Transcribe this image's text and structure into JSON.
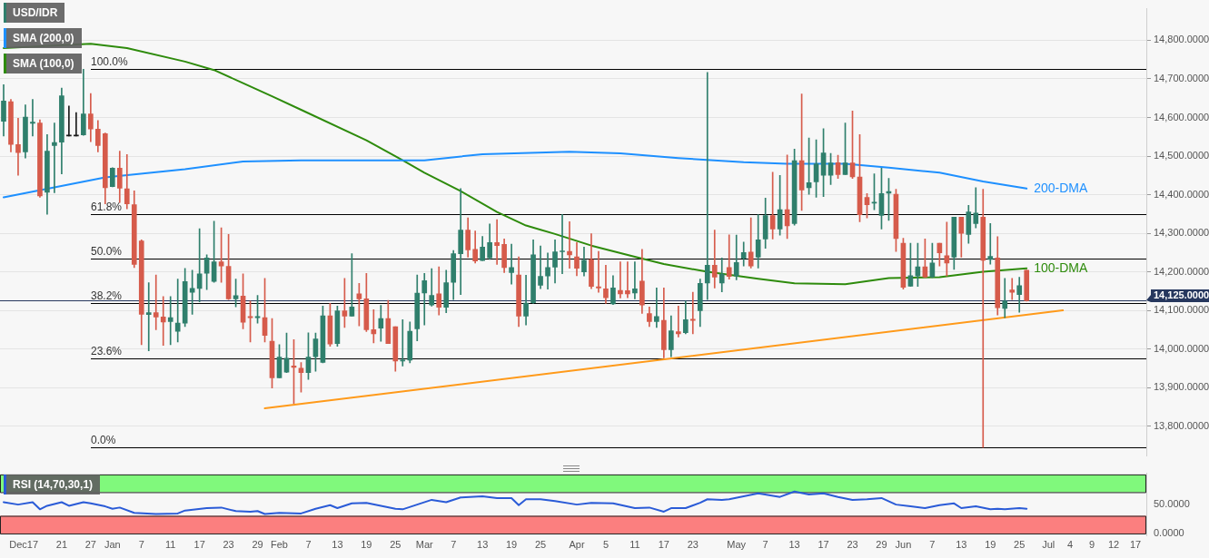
{
  "chart_data": [
    {
      "type": "candlestick",
      "categories": [
        null,
        null,
        null,
        null,
        null,
        null,
        null,
        null,
        null,
        null,
        null,
        null,
        null,
        null,
        null,
        null,
        null,
        null,
        null,
        null,
        null,
        null,
        null,
        null,
        null,
        null,
        null,
        null,
        null,
        null,
        null,
        null,
        null,
        null,
        null,
        null,
        null,
        null,
        null,
        null,
        null,
        null,
        null,
        null,
        null,
        null,
        null,
        null,
        null,
        null,
        null,
        null,
        null,
        null,
        null,
        null,
        null,
        null,
        null,
        null,
        null,
        null,
        null,
        null,
        null,
        null,
        null,
        null,
        null,
        null,
        null,
        null,
        null,
        null,
        null,
        null,
        null,
        null,
        null,
        null,
        null,
        null,
        null,
        null,
        null,
        null,
        null,
        null,
        null,
        null,
        null,
        null,
        null,
        null,
        null,
        null,
        null,
        null,
        null,
        null,
        null,
        null,
        null,
        null,
        null,
        null,
        null,
        null,
        null,
        null,
        null,
        null,
        null,
        null,
        null,
        null,
        null,
        null,
        null,
        null,
        null,
        null,
        null,
        null,
        null,
        null,
        null,
        null,
        null,
        null,
        null,
        null,
        null,
        null,
        null,
        null,
        null,
        null,
        null,
        null,
        null,
        null,
        null,
        null,
        null,
        null,
        null,
        null,
        null,
        null,
        null,
        null,
        null,
        null,
        null,
        null,
        null,
        null
      ],
      "ylim": [
        13723,
        14882
      ],
      "yticks": [
        {
          "value": 13800,
          "label": "13,800.0000"
        },
        {
          "value": 13900,
          "label": "13,900.0000"
        },
        {
          "value": 14000,
          "label": "14,000.0000"
        },
        {
          "value": 14100,
          "label": "14,100.0000"
        },
        {
          "value": 14200,
          "label": "14,200.0000"
        },
        {
          "value": 14300,
          "label": "14,300.0000"
        },
        {
          "value": 14400,
          "label": "14,400.0000"
        },
        {
          "value": 14500,
          "label": "14,500.0000"
        },
        {
          "value": 14600,
          "label": "14,600.0000"
        },
        {
          "value": 14700,
          "label": "14,700.0000"
        },
        {
          "value": 14800,
          "label": "14,800.0000"
        }
      ],
      "y2lim": [
        -2.24,
        116.02
      ],
      "tick_labels": "y",
      "grid": "y",
      "legend": "top left",
      "marker": "none",
      "series": [
        {
          "name": "USD/IDR",
          "color": "#2f7f6c",
          "ohlc": [
            [
              14590,
              14685,
              14552,
              14643
            ],
            [
              14641,
              14647,
              14511,
              14530
            ],
            [
              14530,
              14598,
              14450,
              14509
            ],
            [
              14511,
              14633,
              14495,
              14601
            ],
            [
              14585,
              14647,
              14552,
              14588
            ],
            [
              14586,
              14594,
              14393,
              14397
            ],
            [
              14406,
              14556,
              14349,
              14513
            ],
            [
              14527,
              14586,
              14405,
              14535
            ],
            [
              14536,
              14676,
              14454,
              14656
            ],
            [
              14552,
              14630,
              14552,
              14552
            ],
            [
              14552,
              14613,
              14552,
              14552
            ],
            [
              14555,
              14725,
              14554,
              14609
            ],
            [
              14609,
              14662,
              14537,
              14570
            ],
            [
              14570,
              14592,
              14511,
              14527
            ],
            [
              14558,
              14560,
              14376,
              14418
            ],
            [
              14421,
              14470,
              14420,
              14469
            ],
            [
              14469,
              14513,
              14380,
              14417
            ],
            [
              14415,
              14504,
              14363,
              14376
            ],
            [
              14374,
              14410,
              14211,
              14219
            ],
            [
              14280,
              14283,
              14011,
              14090
            ],
            [
              14089,
              14172,
              13995,
              14094
            ],
            [
              14094,
              14192,
              14050,
              14083
            ],
            [
              14083,
              14136,
              14009,
              14070
            ],
            [
              14071,
              14136,
              14011,
              14081
            ],
            [
              14046,
              14181,
              14018,
              14067
            ],
            [
              14067,
              14209,
              14058,
              14175
            ],
            [
              14147,
              14204,
              14090,
              14157
            ],
            [
              14157,
              14312,
              14122,
              14195
            ],
            [
              14196,
              14244,
              14154,
              14236
            ],
            [
              14175,
              14331,
              14173,
              14226
            ],
            [
              14226,
              14314,
              14173,
              14215
            ],
            [
              14214,
              14297,
              14128,
              14130
            ],
            [
              14130,
              14181,
              14109,
              14138
            ],
            [
              14137,
              14195,
              14052,
              14069
            ],
            [
              14084,
              14124,
              14018,
              14081
            ],
            [
              14081,
              14139,
              14067,
              14084
            ],
            [
              14081,
              14183,
              14018,
              14035
            ],
            [
              14020,
              14079,
              13899,
              13925
            ],
            [
              13925,
              14011,
              13925,
              13979
            ],
            [
              13940,
              14041,
              13939,
              13976
            ],
            [
              13956,
              14024,
              13859,
              13952
            ],
            [
              13950,
              13965,
              13888,
              13939
            ],
            [
              13939,
              14042,
              13921,
              13979
            ],
            [
              13980,
              14041,
              13942,
              14026
            ],
            [
              13965,
              14111,
              13964,
              14086
            ],
            [
              14086,
              14118,
              14007,
              14013
            ],
            [
              14014,
              14111,
              14007,
              14099
            ],
            [
              14099,
              14183,
              14056,
              14085
            ],
            [
              14085,
              14247,
              14085,
              14109
            ],
            [
              14143,
              14170,
              14060,
              14130
            ],
            [
              14130,
              14196,
              14045,
              14050
            ],
            [
              14050,
              14102,
              14016,
              14039
            ],
            [
              14054,
              14113,
              14020,
              14079
            ],
            [
              14079,
              14126,
              14014,
              14014
            ],
            [
              14058,
              14058,
              13942,
              13969
            ],
            [
              13969,
              14076,
              13956,
              13971
            ],
            [
              13971,
              14070,
              13964,
              14046
            ],
            [
              14052,
              14192,
              14021,
              14145
            ],
            [
              14145,
              14196,
              14062,
              14177
            ],
            [
              14114,
              14208,
              14111,
              14139
            ],
            [
              14143,
              14213,
              14088,
              14108
            ],
            [
              14108,
              14204,
              14094,
              14172
            ],
            [
              14173,
              14255,
              14128,
              14247
            ],
            [
              14247,
              14416,
              14141,
              14308
            ],
            [
              14308,
              14340,
              14238,
              14257
            ],
            [
              14258,
              14306,
              14223,
              14228
            ],
            [
              14229,
              14292,
              14229,
              14264
            ],
            [
              14236,
              14324,
              14232,
              14276
            ],
            [
              14276,
              14335,
              14219,
              14268
            ],
            [
              14271,
              14285,
              14198,
              14211
            ],
            [
              14198,
              14272,
              14168,
              14211
            ],
            [
              14192,
              14239,
              14058,
              14085
            ],
            [
              14085,
              14191,
              14062,
              14119
            ],
            [
              14120,
              14283,
              14118,
              14244
            ],
            [
              14165,
              14267,
              14156,
              14188
            ],
            [
              14189,
              14249,
              14155,
              14211
            ],
            [
              14212,
              14283,
              14171,
              14252
            ],
            [
              14252,
              14349,
              14195,
              14254
            ],
            [
              14253,
              14330,
              14209,
              14244
            ],
            [
              14239,
              14276,
              14190,
              14209
            ],
            [
              14200,
              14264,
              14189,
              14230
            ],
            [
              14232,
              14299,
              14156,
              14162
            ],
            [
              14161,
              14253,
              14147,
              14158
            ],
            [
              14156,
              14217,
              14118,
              14133
            ],
            [
              14117,
              14190,
              14115,
              14158
            ],
            [
              14152,
              14226,
              14132,
              14143
            ],
            [
              14151,
              14226,
              14133,
              14143
            ],
            [
              14145,
              14226,
              14130,
              14156
            ],
            [
              14176,
              14258,
              14092,
              14114
            ],
            [
              14092,
              14109,
              14058,
              14071
            ],
            [
              14071,
              14158,
              14056,
              14084
            ],
            [
              14074,
              14158,
              13977,
              13998
            ],
            [
              13998,
              14086,
              13980,
              14047
            ],
            [
              14045,
              14111,
              14031,
              14039
            ],
            [
              14042,
              14124,
              14039,
              14076
            ],
            [
              14077,
              14147,
              14039,
              14074
            ],
            [
              14099,
              14181,
              14058,
              14170
            ],
            [
              14171,
              14717,
              14128,
              14217
            ],
            [
              14217,
              14308,
              14158,
              14186
            ],
            [
              14171,
              14236,
              14148,
              14194
            ],
            [
              14211,
              14296,
              14181,
              14188
            ],
            [
              14189,
              14295,
              14179,
              14224
            ],
            [
              14235,
              14277,
              14215,
              14250
            ],
            [
              14251,
              14340,
              14210,
              14215
            ],
            [
              14238,
              14348,
              14210,
              14283
            ],
            [
              14285,
              14391,
              14261,
              14346
            ],
            [
              14346,
              14458,
              14285,
              14311
            ],
            [
              14311,
              14450,
              14295,
              14361
            ],
            [
              14361,
              14503,
              14286,
              14319
            ],
            [
              14325,
              14518,
              14321,
              14488
            ],
            [
              14488,
              14661,
              14359,
              14412
            ],
            [
              14418,
              14547,
              14401,
              14431
            ],
            [
              14433,
              14542,
              14393,
              14480
            ],
            [
              14450,
              14571,
              14395,
              14508
            ],
            [
              14450,
              14507,
              14426,
              14482
            ],
            [
              14483,
              14502,
              14442,
              14452
            ],
            [
              14452,
              14586,
              14452,
              14482
            ],
            [
              14482,
              14617,
              14442,
              14446
            ],
            [
              14446,
              14556,
              14330,
              14348
            ],
            [
              14393,
              14403,
              14340,
              14374
            ],
            [
              14378,
              14454,
              14361,
              14380
            ],
            [
              14346,
              14469,
              14311,
              14403
            ],
            [
              14404,
              14442,
              14333,
              14408
            ],
            [
              14401,
              14414,
              14253,
              14286
            ],
            [
              14274,
              14287,
              14155,
              14160
            ],
            [
              14163,
              14274,
              14162,
              14190
            ],
            [
              14189,
              14274,
              14162,
              14213
            ],
            [
              14213,
              14285,
              14185,
              14186
            ],
            [
              14187,
              14274,
              14185,
              14223
            ],
            [
              14274,
              14274,
              14215,
              14249
            ],
            [
              14242,
              14329,
              14189,
              14223
            ],
            [
              14238,
              14342,
              14206,
              14342
            ],
            [
              14342,
              14342,
              14238,
              14300
            ],
            [
              14297,
              14372,
              14274,
              14355
            ],
            [
              14325,
              14418,
              14314,
              14352
            ],
            [
              14342,
              14414,
              13745,
              14230
            ],
            [
              14232,
              14325,
              14220,
              14240
            ],
            [
              14236,
              14291,
              14088,
              14107
            ],
            [
              14105,
              14183,
              14081,
              14124
            ],
            [
              14153,
              14183,
              14128,
              14147
            ],
            [
              14141,
              14186,
              14095,
              14164
            ],
            [
              14204,
              14204,
              14124,
              14125
            ],
            null,
            null,
            null,
            null,
            null,
            null,
            null,
            null,
            null,
            null,
            null,
            null,
            null,
            null,
            null,
            null
          ],
          "colors": [
            "#2f7f6c",
            "#d65b4b",
            "#d65b4b",
            "#2f7f6c",
            "#2f7f6c",
            "#d65b4b",
            "#2f7f6c",
            "#2f7f6c",
            "#2f7f6c",
            "#1a1a1a",
            "#1a1a1a",
            "#2f7f6c",
            "#d65b4b",
            "#d65b4b",
            "#d65b4b",
            "#2f7f6c",
            "#d65b4b",
            "#d65b4b",
            "#d65b4b",
            "#d65b4b",
            "#2f7f6c",
            "#d65b4b",
            "#d65b4b",
            "#2f7f6c",
            "#2f7f6c",
            "#2f7f6c",
            "#2f7f6c",
            "#2f7f6c",
            "#2f7f6c",
            "#2f7f6c",
            "#d65b4b",
            "#d65b4b",
            "#2f7f6c",
            "#d65b4b",
            "#d65b4b",
            "#2f7f6c",
            "#d65b4b",
            "#d65b4b",
            "#2f7f6c",
            "#2f7f6c",
            "#d65b4b",
            "#d65b4b",
            "#2f7f6c",
            "#2f7f6c",
            "#2f7f6c",
            "#d65b4b",
            "#2f7f6c",
            "#d65b4b",
            "#2f7f6c",
            "#d65b4b",
            "#d65b4b",
            "#d65b4b",
            "#2f7f6c",
            "#d65b4b",
            "#d65b4b",
            "#2f7f6c",
            "#2f7f6c",
            "#2f7f6c",
            "#2f7f6c",
            "#2f7f6c",
            "#d65b4b",
            "#2f7f6c",
            "#2f7f6c",
            "#2f7f6c",
            "#d65b4b",
            "#d65b4b",
            "#2f7f6c",
            "#2f7f6c",
            "#d65b4b",
            "#d65b4b",
            "#2f7f6c",
            "#d65b4b",
            "#2f7f6c",
            "#2f7f6c",
            "#2f7f6c",
            "#2f7f6c",
            "#2f7f6c",
            "#2f7f6c",
            "#d65b4b",
            "#d65b4b",
            "#2f7f6c",
            "#d65b4b",
            "#d65b4b",
            "#d65b4b",
            "#2f7f6c",
            "#d65b4b",
            "#d65b4b",
            "#2f7f6c",
            "#d65b4b",
            "#d65b4b",
            "#2f7f6c",
            "#d65b4b",
            "#2f7f6c",
            "#d65b4b",
            "#2f7f6c",
            "#d65b4b",
            "#2f7f6c",
            "#2f7f6c",
            "#d65b4b",
            "#2f7f6c",
            "#d65b4b",
            "#2f7f6c",
            "#2f7f6c",
            "#d65b4b",
            "#2f7f6c",
            "#2f7f6c",
            "#d65b4b",
            "#2f7f6c",
            "#d65b4b",
            "#2f7f6c",
            "#d65b4b",
            "#2f7f6c",
            "#2f7f6c",
            "#2f7f6c",
            "#2f7f6c",
            "#d65b4b",
            "#2f7f6c",
            "#d65b4b",
            "#d65b4b",
            "#d65b4b",
            "#2f7f6c",
            "#2f7f6c",
            "#2f7f6c",
            "#d65b4b",
            "#d65b4b",
            "#2f7f6c",
            "#2f7f6c",
            "#d65b4b",
            "#2f7f6c",
            "#d65b4b",
            "#d65b4b",
            "#2f7f6c",
            "#d65b4b",
            "#2f7f6c",
            "#2f7f6c",
            "#d65b4b",
            "#2f7f6c",
            "#d65b4b",
            "#2f7f6c",
            "#d65b4b",
            "#2f7f6c",
            "#d65b4b",
            null,
            null,
            null,
            null,
            null,
            null,
            null,
            null,
            null,
            null,
            null,
            null,
            null,
            null,
            null,
            null
          ]
        },
        {
          "type": "line",
          "name": "SMA (200,0)",
          "color": "#1e90ff",
          "values": [
            14393,
            null,
            null,
            null,
            null,
            null,
            null,
            null,
            null,
            null,
            null,
            null,
            null,
            null,
            14445,
            null,
            null,
            null,
            null,
            null,
            null,
            null,
            null,
            null,
            null,
            14466,
            null,
            null,
            null,
            null,
            null,
            null,
            null,
            14486,
            null,
            null,
            null,
            null,
            null,
            null,
            null,
            14489,
            null,
            null,
            null,
            null,
            null,
            null,
            null,
            null,
            null,
            null,
            null,
            null,
            null,
            14489,
            null,
            null,
            14489,
            null,
            null,
            null,
            null,
            null,
            null,
            null,
            14505,
            null,
            null,
            null,
            null,
            null,
            null,
            null,
            null,
            null,
            null,
            null,
            14511,
            null,
            null,
            null,
            null,
            null,
            null,
            14507,
            null,
            null,
            null,
            null,
            null,
            null,
            null,
            14495,
            null,
            null,
            null,
            null,
            null,
            null,
            null,
            null,
            14484,
            null,
            null,
            null,
            null,
            null,
            14480,
            null,
            null,
            null,
            null,
            null,
            null,
            null,
            14480,
            null,
            null,
            null,
            null,
            null,
            14470,
            null,
            null,
            null,
            null,
            null,
            null,
            14457,
            null,
            null,
            null,
            null,
            null,
            14434,
            null,
            null,
            null,
            null,
            null,
            14416,
            null,
            null,
            null,
            null,
            null,
            null,
            null,
            null,
            null,
            null,
            null,
            null,
            null,
            null,
            null,
            null
          ]
        },
        {
          "type": "line",
          "name": "SMA (100,0)",
          "color": "#2e8b0c",
          "values": [
            14780,
            null,
            null,
            null,
            null,
            null,
            null,
            null,
            null,
            null,
            null,
            null,
            14791,
            null,
            null,
            null,
            null,
            14780,
            null,
            null,
            null,
            null,
            null,
            null,
            null,
            14745,
            null,
            null,
            null,
            14723,
            null,
            null,
            null,
            14689,
            null,
            null,
            null,
            14655,
            null,
            null,
            null,
            14620,
            null,
            null,
            null,
            null,
            null,
            null,
            null,
            null,
            14541,
            null,
            null,
            null,
            null,
            14489,
            null,
            null,
            14457,
            null,
            null,
            null,
            null,
            14409,
            null,
            null,
            null,
            null,
            14355,
            null,
            null,
            null,
            14320,
            null,
            null,
            null,
            14298,
            null,
            null,
            null,
            null,
            14268,
            null,
            null,
            null,
            null,
            null,
            14239,
            null,
            null,
            null,
            14220,
            null,
            null,
            null,
            null,
            null,
            14200,
            null,
            null,
            null,
            null,
            null,
            null,
            14182,
            null,
            null,
            null,
            null,
            14170,
            null,
            null,
            null,
            null,
            null,
            null,
            14168,
            null,
            null,
            null,
            null,
            null,
            14184,
            null,
            null,
            null,
            null,
            null,
            null,
            14186,
            null,
            null,
            null,
            null,
            null,
            14200,
            null,
            null,
            null,
            null,
            null,
            14209,
            null,
            null,
            null,
            null,
            null,
            null,
            null,
            null,
            null,
            null,
            null,
            null,
            null,
            null,
            null,
            null
          ]
        },
        {
          "type": "line",
          "color": "#ff9a1a",
          "values": [
            null,
            null,
            null,
            null,
            null,
            null,
            null,
            null,
            null,
            null,
            null,
            null,
            null,
            null,
            null,
            null,
            null,
            null,
            null,
            null,
            null,
            null,
            null,
            null,
            null,
            null,
            null,
            null,
            null,
            null,
            null,
            null,
            null,
            null,
            null,
            null,
            13846,
            null,
            null,
            null,
            null,
            null,
            null,
            null,
            null,
            null,
            null,
            null,
            null,
            null,
            null,
            null,
            null,
            null,
            null,
            null,
            null,
            null,
            null,
            null,
            null,
            null,
            null,
            null,
            null,
            null,
            null,
            null,
            null,
            null,
            null,
            null,
            null,
            null,
            null,
            null,
            null,
            null,
            null,
            null,
            null,
            null,
            null,
            null,
            null,
            null,
            null,
            null,
            null,
            null,
            null,
            null,
            null,
            null,
            null,
            null,
            null,
            null,
            null,
            null,
            null,
            null,
            null,
            null,
            null,
            null,
            null,
            null,
            null,
            null,
            null,
            null,
            null,
            null,
            null,
            null,
            null,
            null,
            null,
            null,
            null,
            null,
            null,
            null,
            null,
            null,
            null,
            null,
            null,
            null,
            null,
            null,
            null,
            null,
            null,
            null,
            null,
            null,
            null,
            null,
            null,
            null,
            null,
            null,
            null,
            null,
            14100,
            null,
            null,
            null,
            null,
            null,
            null,
            null,
            null,
            null,
            null,
            null
          ]
        }
      ],
      "ref_lines": [
        {
          "axis": "y2",
          "value": 100,
          "label": "100.0%",
          "color": "#000000"
        },
        {
          "axis": "y2",
          "value": 61.8,
          "label": "61.8%",
          "color": "#000000"
        },
        {
          "axis": "y2",
          "value": 50,
          "label": "50.0%",
          "color": "#000000"
        },
        {
          "axis": "y2",
          "value": 38.2,
          "label": "38.2%",
          "color": "#000000"
        },
        {
          "axis": "y2",
          "value": 23.6,
          "label": "23.6%",
          "color": "#000000"
        },
        {
          "axis": "y2",
          "value": 0,
          "label": "0.0%",
          "color": "#000000"
        },
        {
          "axis": "y",
          "value": 14125,
          "label": "14,125.0000",
          "color": "#26375e"
        }
      ],
      "annotations": [
        "200-DMA",
        "100-DMA"
      ]
    },
    {
      "type": "line",
      "categories": [
        null,
        null,
        "Dec",
        null,
        "17",
        null,
        null,
        null,
        "21",
        null,
        null,
        null,
        "27",
        null,
        null,
        "Jan",
        null,
        null,
        null,
        "7",
        null,
        null,
        null,
        "11",
        null,
        null,
        null,
        "17",
        null,
        null,
        null,
        "23",
        null,
        null,
        null,
        "29",
        null,
        null,
        "Feb",
        null,
        null,
        null,
        "7",
        null,
        null,
        null,
        "13",
        null,
        null,
        null,
        "19",
        null,
        null,
        null,
        "25",
        null,
        null,
        null,
        "Mar",
        null,
        null,
        null,
        "7",
        null,
        null,
        null,
        "13",
        null,
        null,
        null,
        "19",
        null,
        null,
        null,
        "25",
        null,
        null,
        null,
        null,
        "Apr",
        null,
        null,
        null,
        "5",
        null,
        null,
        null,
        "11",
        null,
        null,
        null,
        "17",
        null,
        null,
        null,
        "23",
        null,
        null,
        null,
        null,
        null,
        "May",
        null,
        null,
        null,
        "7",
        null,
        null,
        null,
        "13",
        null,
        null,
        null,
        "17",
        null,
        null,
        null,
        "23",
        null,
        null,
        null,
        "29",
        null,
        null,
        "Jun",
        null,
        null,
        null,
        "7",
        null,
        null,
        null,
        "13",
        null,
        null,
        null,
        "19",
        null,
        null,
        null,
        "25",
        null,
        null,
        null,
        "Jul",
        null,
        null,
        "4",
        null,
        null,
        "9",
        null,
        null,
        "12",
        null,
        null,
        "17",
        null
      ],
      "ylim": [
        -3,
        102
      ],
      "yticks": [
        {
          "value": 0,
          "label": "0.0000"
        },
        {
          "value": 50,
          "label": "50.0000"
        }
      ],
      "legend": "top left",
      "marker": "none",
      "series": [
        {
          "name": "RSI (14,70,30,1)",
          "color": "#2a5bd7",
          "values": [
            53,
            null,
            49,
            null,
            53,
            41,
            47,
            null,
            53,
            47,
            null,
            53,
            51,
            null,
            46,
            42,
            44,
            null,
            35,
            null,
            null,
            33,
            null,
            null,
            34,
            39,
            null,
            null,
            43,
            null,
            44,
            null,
            38,
            null,
            37,
            38,
            33,
            null,
            35,
            null,
            null,
            34,
            null,
            42,
            null,
            48,
            43,
            null,
            51,
            null,
            52,
            null,
            47,
            null,
            42,
            41,
            null,
            49,
            null,
            57,
            null,
            53,
            null,
            61,
            null,
            null,
            63,
            null,
            60,
            null,
            60,
            48,
            58,
            null,
            58,
            null,
            55,
            null,
            null,
            49,
            null,
            52,
            null,
            null,
            51,
            null,
            null,
            43,
            null,
            44,
            null,
            37,
            43,
            null,
            43,
            null,
            52,
            58,
            null,
            57,
            58,
            null,
            63,
            null,
            68,
            null,
            null,
            62,
            null,
            71,
            null,
            66,
            null,
            68,
            null,
            62,
            null,
            57,
            null,
            58,
            null,
            60,
            null,
            49,
            null,
            46,
            null,
            43,
            null,
            48,
            null,
            51,
            43,
            null,
            46,
            null,
            41,
            42,
            41,
            null,
            43,
            42,
            null,
            null,
            null,
            null,
            null,
            null,
            null,
            null,
            null,
            null,
            null,
            null,
            null,
            null,
            null,
            null
          ]
        }
      ],
      "bands": [
        {
          "axis": "y",
          "from": 70,
          "to": 100,
          "color": "#80f97c"
        },
        {
          "axis": "y",
          "from": 0,
          "to": 30,
          "color": "#fb7f7f"
        }
      ]
    }
  ]
}
